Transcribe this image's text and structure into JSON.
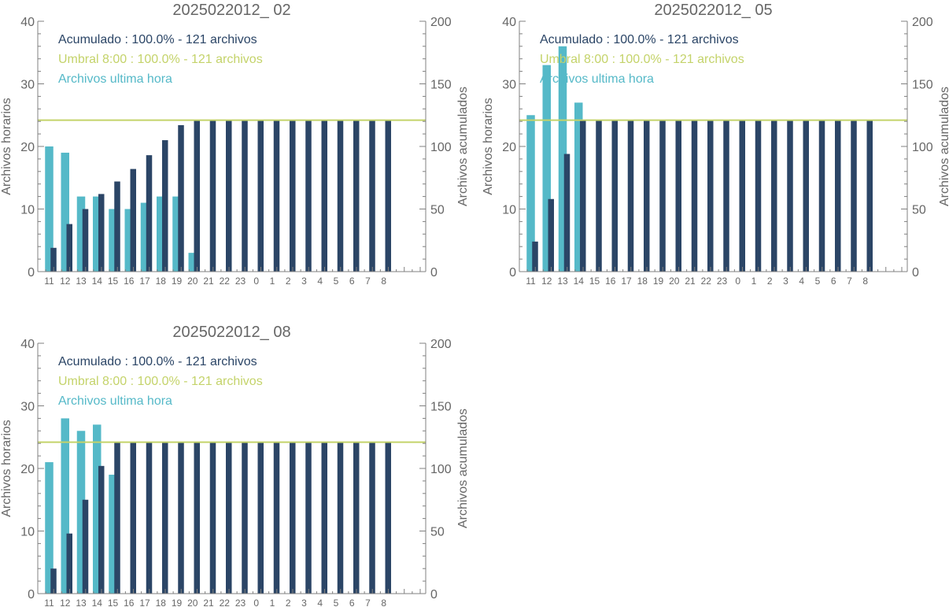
{
  "colors": {
    "hourly": "#55b9c8",
    "cumulative": "#2b4566",
    "threshold": "#c4d36a",
    "axis": "#808080",
    "text": "#666666"
  },
  "chart_data": [
    {
      "type": "bar",
      "title": "2025022012_ 02",
      "ylabel": "Archivos horarios",
      "y2label": "Archivos acumulados",
      "ylim": [
        0,
        40
      ],
      "y2lim": [
        0,
        200
      ],
      "yticks": [
        "0",
        "10",
        "20",
        "30",
        "40"
      ],
      "y2ticks": [
        "0",
        "50",
        "100",
        "150",
        "200"
      ],
      "categories": [
        "11",
        "12",
        "13",
        "14",
        "15",
        "16",
        "17",
        "18",
        "19",
        "20",
        "21",
        "22",
        "23",
        "0",
        "1",
        "2",
        "3",
        "4",
        "5",
        "6",
        "7",
        "8"
      ],
      "legend": [
        {
          "text": "Acumulado : 100.0% - 121 archivos",
          "color": "cumulative"
        },
        {
          "text": "Umbral 8:00 : 100.0% - 121 archivos",
          "color": "threshold"
        },
        {
          "text": "Archivos ultima hora",
          "color": "hourly"
        }
      ],
      "threshold": 121,
      "series": [
        {
          "name": "Archivos ultima hora",
          "axis": "left",
          "values": [
            20,
            19,
            12,
            12,
            10,
            10,
            11,
            12,
            12,
            3,
            null,
            null,
            null,
            null,
            null,
            null,
            null,
            null,
            null,
            null,
            null,
            null
          ]
        },
        {
          "name": "Acumulado",
          "axis": "right",
          "values": [
            19,
            38,
            50,
            62,
            72,
            82,
            93,
            105,
            117,
            121,
            121,
            121,
            121,
            121,
            121,
            121,
            121,
            121,
            121,
            121,
            121,
            121
          ]
        }
      ]
    },
    {
      "type": "bar",
      "title": "2025022012_ 05",
      "ylabel": "Archivos horarios",
      "y2label": "Archivos acumulados",
      "ylim": [
        0,
        40
      ],
      "y2lim": [
        0,
        200
      ],
      "yticks": [
        "0",
        "10",
        "20",
        "30",
        "40"
      ],
      "y2ticks": [
        "0",
        "50",
        "100",
        "150",
        "200"
      ],
      "categories": [
        "11",
        "12",
        "13",
        "14",
        "15",
        "16",
        "17",
        "18",
        "19",
        "20",
        "21",
        "22",
        "23",
        "0",
        "1",
        "2",
        "3",
        "4",
        "5",
        "6",
        "7",
        "8"
      ],
      "legend": [
        {
          "text": "Acumulado : 100.0% - 121 archivos",
          "color": "cumulative"
        },
        {
          "text": "Umbral 8:00 : 100.0% - 121 archivos",
          "color": "threshold"
        },
        {
          "text": "Archivos ultima hora",
          "color": "hourly"
        }
      ],
      "threshold": 121,
      "series": [
        {
          "name": "Archivos ultima hora",
          "axis": "left",
          "values": [
            25,
            33,
            36,
            27,
            null,
            null,
            null,
            null,
            null,
            null,
            null,
            null,
            null,
            null,
            null,
            null,
            null,
            null,
            null,
            null,
            null,
            null
          ]
        },
        {
          "name": "Acumulado",
          "axis": "right",
          "values": [
            24,
            58,
            94,
            121,
            121,
            121,
            121,
            121,
            121,
            121,
            121,
            121,
            121,
            121,
            121,
            121,
            121,
            121,
            121,
            121,
            121,
            121
          ]
        }
      ]
    },
    {
      "type": "bar",
      "title": "2025022012_ 08",
      "ylabel": "Archivos horarios",
      "y2label": "Archivos acumulados",
      "ylim": [
        0,
        40
      ],
      "y2lim": [
        0,
        200
      ],
      "yticks": [
        "0",
        "10",
        "20",
        "30",
        "40"
      ],
      "y2ticks": [
        "0",
        "50",
        "100",
        "150",
        "200"
      ],
      "categories": [
        "11",
        "12",
        "13",
        "14",
        "15",
        "16",
        "17",
        "18",
        "19",
        "20",
        "21",
        "22",
        "23",
        "0",
        "1",
        "2",
        "3",
        "4",
        "5",
        "6",
        "7",
        "8"
      ],
      "legend": [
        {
          "text": "Acumulado : 100.0% - 121 archivos",
          "color": "cumulative"
        },
        {
          "text": "Umbral 8:00 : 100.0% - 121 archivos",
          "color": "threshold"
        },
        {
          "text": "Archivos ultima hora",
          "color": "hourly"
        }
      ],
      "threshold": 121,
      "series": [
        {
          "name": "Archivos ultima hora",
          "axis": "left",
          "values": [
            21,
            28,
            26,
            27,
            19,
            null,
            null,
            null,
            null,
            null,
            null,
            null,
            null,
            null,
            null,
            null,
            null,
            null,
            null,
            null,
            null,
            null
          ]
        },
        {
          "name": "Acumulado",
          "axis": "right",
          "values": [
            20,
            48,
            75,
            102,
            121,
            121,
            121,
            121,
            121,
            121,
            121,
            121,
            121,
            121,
            121,
            121,
            121,
            121,
            121,
            121,
            121,
            121
          ]
        }
      ]
    }
  ]
}
